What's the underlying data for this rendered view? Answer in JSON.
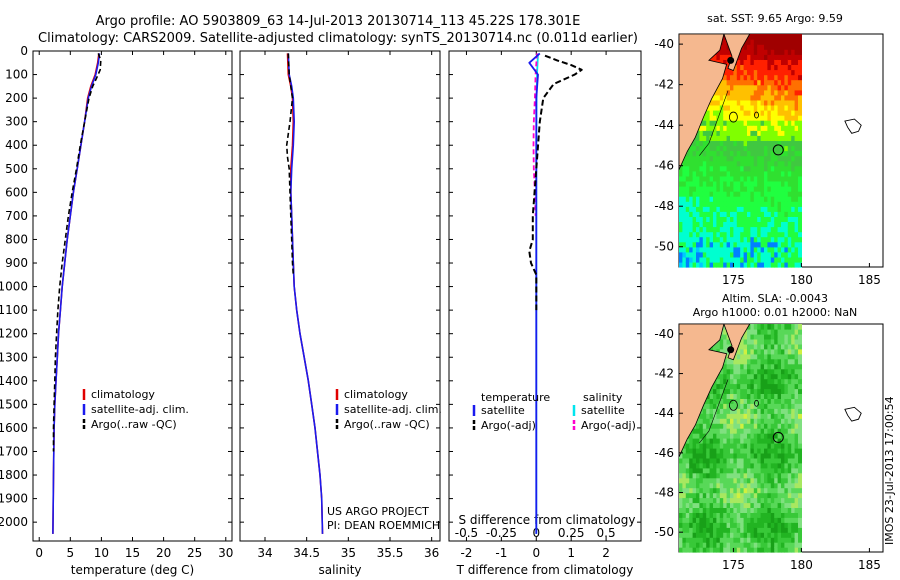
{
  "header": {
    "line1": "Argo profile: AO 5903809_63 14-Jul-2013 20130714_113 45.22S 178.301E",
    "line2": "Climatology: CARS2009. Satellite-adjusted climatology: synTS_20130714.nc (0.011d earlier)"
  },
  "project": {
    "line1": "US ARGO PROJECT",
    "line2": "PI: DEAN ROEMMICH"
  },
  "stamp": "IMOS 23-Jul-2013 17:00:54",
  "colors": {
    "climatology": "#e00000",
    "satellite": "#1a1aee",
    "argo": "#000000",
    "satellite_salinity": "#00e5ee",
    "argo_salinity": "#ff00cc",
    "land": "#f5b88f"
  },
  "chart_data": [
    {
      "id": "temperature",
      "type": "line",
      "xlabel": "temperature (deg C)",
      "ylabel": "",
      "xlim": [
        -1,
        31
      ],
      "ylim": [
        2080,
        0
      ],
      "grid": false,
      "legend": "lower-left",
      "xticks": [
        "0",
        "5",
        "10",
        "15",
        "20",
        "25",
        "30"
      ],
      "yticks": [
        "0",
        "100",
        "200",
        "300",
        "400",
        "500",
        "600",
        "700",
        "800",
        "900",
        "1000",
        "1100",
        "1200",
        "1300",
        "1400",
        "1500",
        "1600",
        "1700",
        "1800",
        "1900",
        "2000"
      ],
      "legend_entries": [
        "climatology",
        "satellite-adj. clim.",
        "Argo(..raw -QC)"
      ],
      "series": [
        {
          "name": "climatology",
          "x": [
            9.6,
            9.4,
            9.0,
            8.3,
            7.8,
            7.3,
            6.7,
            6.1,
            5.5,
            5.0,
            4.5,
            4.1,
            3.7,
            3.4,
            3.1,
            2.9,
            2.7,
            2.5,
            2.4,
            2.3,
            2.2
          ],
          "y": [
            10,
            50,
            100,
            150,
            200,
            300,
            400,
            500,
            600,
            700,
            800,
            900,
            1000,
            1100,
            1200,
            1300,
            1400,
            1500,
            1600,
            1800,
            2050
          ]
        },
        {
          "name": "satellite-adj. clim.",
          "x": [
            9.7,
            9.5,
            9.1,
            8.4,
            7.9,
            7.3,
            6.7,
            6.1,
            5.5,
            5.0,
            4.5,
            4.1,
            3.7,
            3.4,
            3.1,
            2.9,
            2.7,
            2.5,
            2.4,
            2.3,
            2.2
          ],
          "y": [
            10,
            50,
            100,
            150,
            200,
            300,
            400,
            500,
            600,
            700,
            800,
            900,
            1000,
            1100,
            1200,
            1300,
            1400,
            1500,
            1600,
            1800,
            2050
          ]
        },
        {
          "name": "Argo(..raw -QC)",
          "x": [
            9.5,
            9.9,
            9.8,
            9.3,
            8.6,
            8.0,
            7.3,
            6.6,
            6.0,
            5.3,
            4.7,
            4.2,
            3.7,
            3.3,
            3.0,
            2.8,
            2.6,
            2.5,
            2.4,
            2.3,
            2.3
          ],
          "y": [
            10,
            40,
            80,
            110,
            150,
            200,
            300,
            400,
            500,
            600,
            700,
            800,
            900,
            1000,
            1100,
            1200,
            1300,
            1400,
            1500,
            1600,
            1700
          ]
        }
      ]
    },
    {
      "id": "salinity",
      "type": "line",
      "xlabel": "salinity",
      "ylabel": "",
      "xlim": [
        33.7,
        36.1
      ],
      "ylim": [
        2080,
        0
      ],
      "grid": false,
      "legend": "lower-right",
      "xticks": [
        "34",
        "34.5",
        "35",
        "35.5",
        "36"
      ],
      "legend_entries": [
        "climatology",
        "satellite-adj. clim.",
        "Argo(..raw -QC)"
      ],
      "series": [
        {
          "name": "climatology",
          "x": [
            34.27,
            34.28,
            34.31,
            34.33,
            34.34,
            34.33,
            34.31,
            34.31,
            34.32,
            34.33,
            34.34,
            34.35,
            34.38,
            34.42,
            34.47,
            34.52,
            34.56,
            34.6,
            34.63,
            34.66,
            34.68,
            34.69
          ],
          "y": [
            10,
            100,
            150,
            200,
            300,
            400,
            500,
            600,
            700,
            800,
            900,
            1000,
            1100,
            1200,
            1300,
            1400,
            1500,
            1600,
            1700,
            1800,
            1900,
            2050
          ]
        },
        {
          "name": "satellite-adj. clim.",
          "x": [
            34.28,
            34.29,
            34.32,
            34.34,
            34.35,
            34.34,
            34.32,
            34.31,
            34.32,
            34.33,
            34.34,
            34.35,
            34.38,
            34.42,
            34.47,
            34.52,
            34.56,
            34.6,
            34.63,
            34.66,
            34.68,
            34.69
          ],
          "y": [
            10,
            100,
            150,
            200,
            300,
            400,
            500,
            600,
            700,
            800,
            900,
            1000,
            1100,
            1200,
            1300,
            1400,
            1500,
            1600,
            1700,
            1800,
            1900,
            2050
          ]
        },
        {
          "name": "Argo(..raw -QC)",
          "x": [
            34.28,
            34.29,
            34.31,
            34.33,
            34.3,
            34.26,
            34.27,
            34.29,
            34.3,
            34.31,
            34.32,
            34.33,
            34.34
          ],
          "y": [
            10,
            100,
            150,
            200,
            300,
            400,
            450,
            500,
            600,
            700,
            800,
            900,
            950
          ]
        }
      ]
    },
    {
      "id": "difference",
      "type": "line",
      "xlabel": "T difference from climatology",
      "ylabel": "",
      "title_lower": "S difference from climatology",
      "xlim": [
        -2.5,
        3.0
      ],
      "ylim": [
        2080,
        0
      ],
      "grid": false,
      "legend": "lower-center",
      "xticks": [
        "-2",
        "-1",
        "0",
        "1",
        "2"
      ],
      "s_ticks": [
        "-0.5",
        "-0.25",
        "0",
        "0.25",
        "0.5"
      ],
      "legend_headers": [
        "temperature",
        "salinity"
      ],
      "legend_entries": [
        "satellite",
        "Argo(-adj)",
        "satellite",
        "Argo(-adj)"
      ],
      "series": [
        {
          "name": "satellite",
          "group": "temperature",
          "x": [
            0.1,
            -0.2,
            0.05,
            0.0,
            0.0,
            0.0,
            0.0,
            0.0,
            0.0,
            0.0,
            0.0,
            0.0
          ],
          "y": [
            10,
            50,
            100,
            200,
            300,
            500,
            800,
            1000,
            1300,
            1500,
            1800,
            2050
          ]
        },
        {
          "name": "Argo(-adj)",
          "group": "temperature",
          "x": [
            0.25,
            0.6,
            1.0,
            1.3,
            1.1,
            0.5,
            0.2,
            0.1,
            0.0,
            -0.1,
            -0.1,
            -0.2,
            -0.15,
            0.0,
            0.0,
            0.0
          ],
          "y": [
            20,
            40,
            60,
            80,
            100,
            140,
            200,
            300,
            500,
            700,
            800,
            850,
            900,
            950,
            1000,
            1100
          ]
        },
        {
          "name": "satellite",
          "group": "salinity",
          "x": [
            0.05,
            0.02,
            0.01,
            0.0,
            0.0,
            0.0,
            0.0,
            0.0,
            0.0,
            0.0,
            0.0
          ],
          "y": [
            10,
            100,
            200,
            400,
            600,
            800,
            1000,
            1300,
            1500,
            1800,
            2050
          ]
        },
        {
          "name": "Argo(-adj)",
          "group": "salinity",
          "x": [
            0.02,
            -0.02,
            -0.04,
            -0.07,
            -0.08,
            -0.07,
            -0.04,
            -0.02
          ],
          "y": [
            10,
            100,
            200,
            300,
            400,
            500,
            600,
            700
          ]
        }
      ]
    },
    {
      "id": "sst_map",
      "type": "heatmap",
      "title": "sat. SST: 9.65  Argo: 9.59",
      "xlim": [
        171,
        186
      ],
      "ylim": [
        -51,
        -39.5
      ],
      "xticks": [
        "175",
        "180",
        "185"
      ],
      "yticks": [
        "-40",
        "-42",
        "-44",
        "-46",
        "-48",
        "-50"
      ]
    },
    {
      "id": "sla_map",
      "type": "heatmap",
      "title": "Altim. SLA: -0.0043",
      "subtitle": "Argo h1000: 0.01  h2000: NaN",
      "xlim": [
        171,
        186
      ],
      "ylim": [
        -51,
        -39.5
      ],
      "xticks": [
        "175",
        "180",
        "185"
      ],
      "yticks": [
        "-40",
        "-42",
        "-44",
        "-46",
        "-48",
        "-50"
      ]
    }
  ]
}
